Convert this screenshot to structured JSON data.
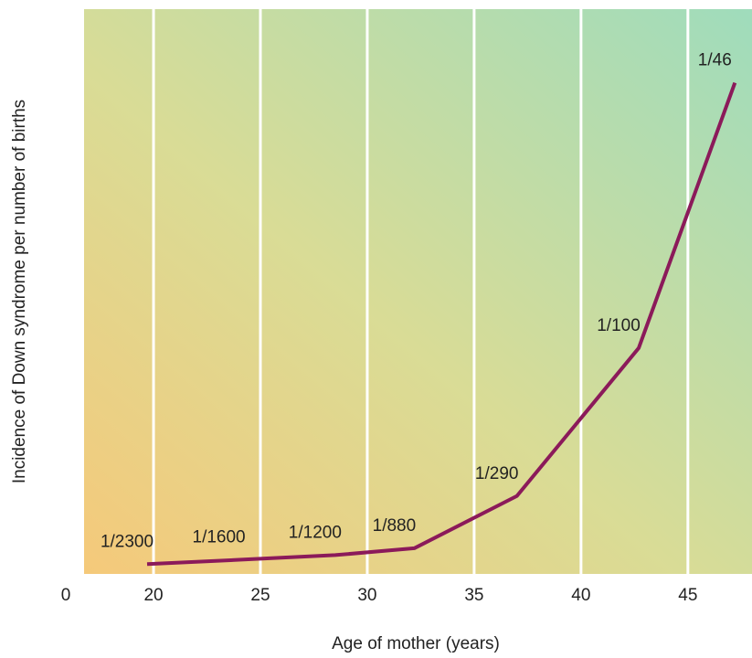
{
  "chart_data": {
    "type": "line",
    "y_label": "Incidence of Down syndrome per number of births",
    "x_label": "Age of mother (years)",
    "x": [
      19.7,
      24,
      28.5,
      32.2,
      37,
      42.7,
      47.2
    ],
    "series": [
      {
        "color": "#8b1a5a",
        "values": [
          0.000435,
          0.000625,
          0.000833,
          0.001136,
          0.003448,
          0.01,
          0.021739
        ],
        "value_labels": [
          "1/2300",
          "1/1600",
          "1/1200",
          "1/880",
          "1/290",
          "1/100",
          "1/46"
        ]
      }
    ],
    "xlim": [
      16.75,
      48
    ],
    "xticks": [
      20,
      25,
      30,
      35,
      40,
      45
    ],
    "ylim": [
      0,
      0.025
    ],
    "yticks": [
      0
    ],
    "grid": true
  }
}
